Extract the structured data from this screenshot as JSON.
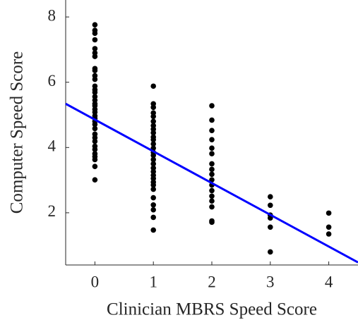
{
  "chart_data": {
    "type": "scatter",
    "xlabel": "Clinician MBRS Speed Score",
    "ylabel": "Computer Speed Score",
    "xlim": [
      -0.5,
      4.5
    ],
    "ylim": [
      0.4,
      8.52
    ],
    "xticks": [
      0,
      1,
      2,
      3,
      4
    ],
    "yticks": [
      2,
      4,
      6,
      8
    ],
    "color": "#000000",
    "x": [
      0,
      0,
      0,
      0,
      0,
      0,
      0,
      0,
      0,
      0,
      0,
      0,
      0,
      0,
      0,
      0,
      0,
      0,
      0,
      0,
      0,
      0,
      0,
      0,
      0,
      0,
      0,
      0,
      0,
      0,
      0,
      0,
      0,
      0,
      0,
      1,
      1,
      1,
      1,
      1,
      1,
      1,
      1,
      1,
      1,
      1,
      1,
      1,
      1,
      1,
      1,
      1,
      1,
      1,
      1,
      1,
      1,
      1,
      1,
      1,
      1,
      1,
      1,
      1,
      2,
      2,
      2,
      2,
      2,
      2,
      2,
      2,
      2,
      2,
      2,
      2,
      2,
      2,
      2,
      2,
      2,
      3,
      3,
      3,
      3,
      3,
      3,
      4,
      4,
      4
    ],
    "values": [
      7.76,
      7.59,
      7.5,
      7.3,
      7.03,
      6.9,
      6.79,
      6.42,
      6.36,
      6.2,
      6.09,
      5.88,
      5.77,
      5.69,
      5.56,
      5.45,
      5.34,
      5.28,
      5.17,
      5.08,
      4.97,
      4.89,
      4.8,
      4.71,
      4.58,
      4.41,
      4.3,
      4.19,
      4.04,
      3.94,
      3.81,
      3.72,
      3.63,
      3.42,
      3.01,
      5.88,
      5.34,
      5.23,
      5.06,
      4.95,
      4.8,
      4.67,
      4.56,
      4.45,
      4.32,
      4.24,
      4.11,
      3.98,
      3.85,
      3.76,
      3.63,
      3.5,
      3.37,
      3.26,
      3.15,
      3.05,
      2.94,
      2.85,
      2.72,
      2.46,
      2.24,
      2.09,
      1.86,
      1.47,
      5.28,
      4.84,
      4.52,
      4.24,
      3.98,
      3.81,
      3.5,
      3.33,
      3.18,
      3.01,
      2.85,
      2.68,
      2.51,
      2.36,
      2.18,
      1.75,
      1.71,
      2.49,
      2.23,
      1.93,
      1.84,
      1.56,
      0.8,
      1.99,
      1.56,
      1.35
    ],
    "fit": {
      "x": [
        -0.5,
        4.5
      ],
      "values": [
        5.34,
        0.48
      ],
      "color": "#0000ff"
    }
  }
}
